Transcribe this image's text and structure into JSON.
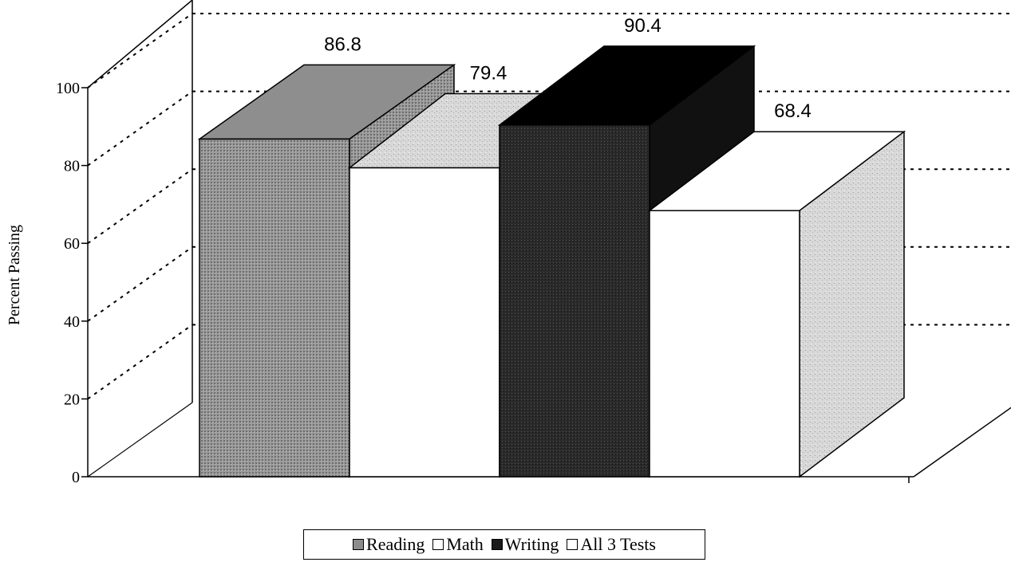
{
  "chart_data": {
    "type": "bar",
    "title": "",
    "ylabel": "Percent Passing",
    "xlabel": "",
    "ylim": [
      0,
      100
    ],
    "yticks": [
      0,
      20,
      40,
      60,
      80,
      100
    ],
    "grid": true,
    "legend_position": "bottom-center",
    "series": [
      {
        "name": "Reading",
        "value": 86.8,
        "color": "#8c8c8c"
      },
      {
        "name": "Math",
        "value": 79.4,
        "color": "#ffffff"
      },
      {
        "name": "Writing",
        "value": 90.4,
        "color": "#1a1a1a"
      },
      {
        "name": "All 3 Tests",
        "value": 68.4,
        "color": "#ffffff"
      }
    ]
  }
}
